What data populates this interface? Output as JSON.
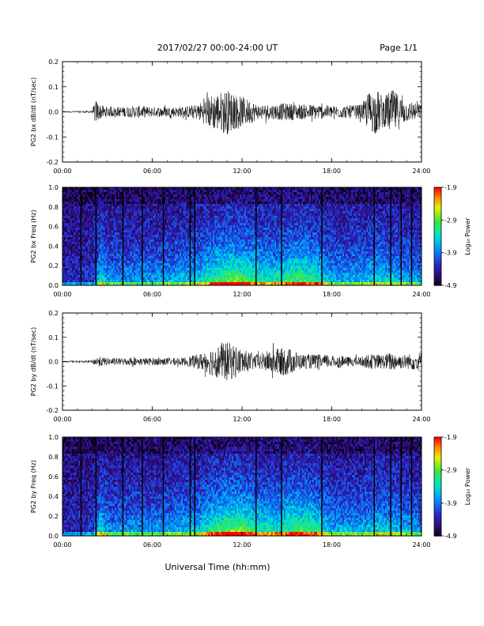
{
  "header": {
    "title": "2017/02/27  00:00-24:00 UT",
    "page": "Page 1/1"
  },
  "xaxis_label": "Universal Time (hh:mm)",
  "colorbar": {
    "label": "Log₁₀ Power",
    "ticks": [
      "-1.9",
      "-2.9",
      "-3.9",
      "-4.9"
    ]
  },
  "colors": {
    "trace": "#000000",
    "spectrogram_low": "#1a0a6e",
    "spectrogram_high": "#ff0000"
  },
  "chart_data": [
    {
      "type": "line",
      "name": "bx-waveform",
      "ylabel": "PG2 bx dB/dt (nT/sec)",
      "x_ticks": [
        "00:00",
        "06:00",
        "12:00",
        "18:00",
        "24:00"
      ],
      "y_ticks": [
        "0.2",
        "0.1",
        "0.0",
        "-0.1",
        "-0.2"
      ],
      "xlim": [
        0,
        24
      ],
      "ylim": [
        -0.2,
        0.2
      ],
      "amplitude_envelope": {
        "hours": [
          0,
          1,
          2,
          2.2,
          2.5,
          3,
          4,
          5,
          6,
          7,
          8,
          9,
          9.5,
          10,
          10.5,
          11,
          11.5,
          12,
          12.5,
          13,
          14,
          15,
          16,
          17,
          18,
          19,
          20,
          20.5,
          21,
          21.5,
          22,
          22.5,
          23,
          24
        ],
        "amp": [
          0.003,
          0.004,
          0.006,
          0.05,
          0.03,
          0.02,
          0.02,
          0.025,
          0.02,
          0.02,
          0.02,
          0.03,
          0.05,
          0.07,
          0.08,
          0.09,
          0.07,
          0.06,
          0.05,
          0.03,
          0.03,
          0.035,
          0.03,
          0.03,
          0.025,
          0.025,
          0.03,
          0.08,
          0.09,
          0.06,
          0.09,
          0.07,
          0.04,
          0.03
        ]
      }
    },
    {
      "type": "heatmap",
      "name": "bx-spectrogram",
      "ylabel": "PG2 bx Freq (Hz)",
      "x_ticks": [
        "00:00",
        "06:00",
        "12:00",
        "18:00",
        "24:00"
      ],
      "y_ticks": [
        "1.0",
        "0.8",
        "0.6",
        "0.4",
        "0.2",
        "0.0"
      ],
      "xlim": [
        0,
        24
      ],
      "ylim": [
        0,
        1.0
      ],
      "zlim": [
        -4.9,
        -1.9
      ],
      "data_gaps_hours": [
        1.2,
        2.2,
        4.0,
        5.3,
        6.7,
        8.5,
        8.8,
        12.9,
        14.6,
        17.3,
        20.8,
        21.9,
        22.6,
        23.3
      ],
      "activity_envelope": {
        "hours": [
          0,
          2,
          2.5,
          3,
          6,
          9,
          10,
          11,
          12,
          13,
          14,
          15,
          16,
          17,
          18,
          20,
          21,
          22,
          24
        ],
        "level": [
          0.1,
          0.15,
          0.55,
          0.35,
          0.35,
          0.45,
          0.65,
          0.75,
          0.7,
          0.6,
          0.55,
          0.65,
          0.7,
          0.6,
          0.4,
          0.4,
          0.5,
          0.45,
          0.35
        ]
      }
    },
    {
      "type": "line",
      "name": "by-waveform",
      "ylabel": "PG2 by dB/dt (nT/sec)",
      "x_ticks": [
        "00:00",
        "06:00",
        "12:00",
        "18:00",
        "24:00"
      ],
      "y_ticks": [
        "0.2",
        "0.1",
        "0.0",
        "-0.1",
        "-0.2"
      ],
      "xlim": [
        0,
        24
      ],
      "ylim": [
        -0.2,
        0.2
      ],
      "amplitude_envelope": {
        "hours": [
          0,
          1,
          2,
          2.2,
          2.5,
          3,
          4,
          5,
          6,
          7,
          8,
          9,
          9.5,
          10,
          10.5,
          11,
          11.5,
          12,
          12.5,
          13,
          14,
          15,
          16,
          17,
          18,
          19,
          20,
          20.5,
          21,
          21.5,
          22,
          22.5,
          23,
          24
        ],
        "amp": [
          0.003,
          0.004,
          0.006,
          0.02,
          0.02,
          0.015,
          0.015,
          0.015,
          0.015,
          0.015,
          0.015,
          0.03,
          0.04,
          0.06,
          0.07,
          0.08,
          0.07,
          0.05,
          0.04,
          0.03,
          0.05,
          0.06,
          0.03,
          0.03,
          0.025,
          0.02,
          0.02,
          0.03,
          0.03,
          0.03,
          0.04,
          0.03,
          0.03,
          0.04
        ]
      }
    },
    {
      "type": "heatmap",
      "name": "by-spectrogram",
      "ylabel": "PG2 by Freq (Hz)",
      "x_ticks": [
        "00:00",
        "06:00",
        "12:00",
        "18:00",
        "24:00"
      ],
      "y_ticks": [
        "1.0",
        "0.8",
        "0.6",
        "0.4",
        "0.2",
        "0.0"
      ],
      "xlim": [
        0,
        24
      ],
      "ylim": [
        0,
        1.0
      ],
      "zlim": [
        -4.9,
        -1.9
      ],
      "data_gaps_hours": [
        1.2,
        2.2,
        4.0,
        5.3,
        6.7,
        8.5,
        8.8,
        12.9,
        14.6,
        17.3,
        20.8,
        21.9,
        22.6,
        23.3
      ],
      "activity_envelope": {
        "hours": [
          0,
          2,
          2.5,
          3,
          6,
          9,
          10,
          11,
          12,
          13,
          14,
          15,
          16,
          17,
          18,
          20,
          21,
          22,
          24
        ],
        "level": [
          0.1,
          0.15,
          0.55,
          0.35,
          0.35,
          0.45,
          0.65,
          0.75,
          0.75,
          0.6,
          0.55,
          0.65,
          0.7,
          0.6,
          0.4,
          0.4,
          0.5,
          0.45,
          0.35
        ]
      }
    }
  ]
}
